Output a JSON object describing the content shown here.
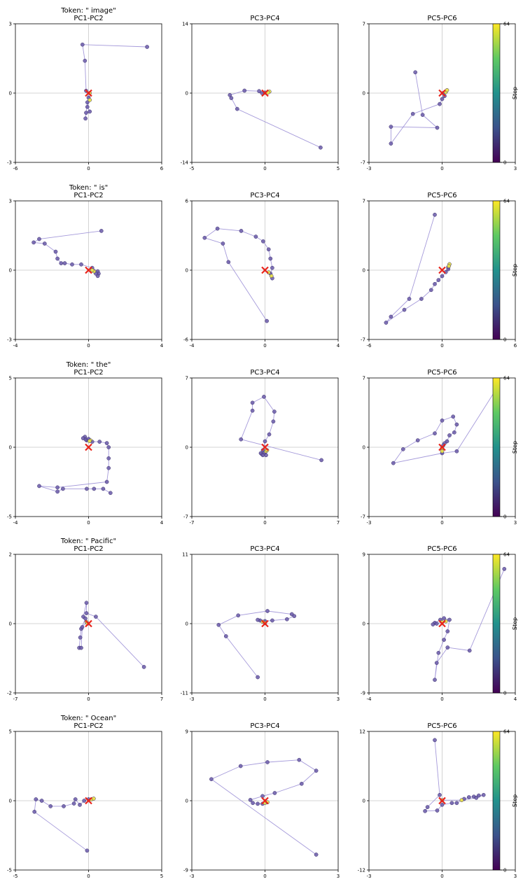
{
  "colorbar": {
    "label": "Step",
    "min": 0,
    "max": 64,
    "tick_labels": [
      "64",
      "0"
    ],
    "colors": [
      "#440154",
      "#3b528b",
      "#21918c",
      "#5ec962",
      "#fde725"
    ]
  },
  "style": {
    "line_color": "#9b8fd6",
    "point_color": "#6a5aa8",
    "point_edge": "#3b2f6e",
    "final_point_color": "#e8e24a",
    "marker_color": "#e8231a",
    "reference_line_color": "#c8c8c8"
  },
  "chart_data": [
    {
      "type": "line",
      "token": "Token: \" image\"",
      "title": "PC1-PC2",
      "xlim": [
        -6,
        6
      ],
      "ylim": [
        -3,
        3
      ],
      "x_ticks": [
        "-6",
        "0",
        "6"
      ],
      "y_ticks": [
        "3",
        "0",
        "-3"
      ],
      "points": [
        [
          4.8,
          2.0
        ],
        [
          -0.5,
          2.1
        ],
        [
          -0.3,
          1.4
        ],
        [
          -0.2,
          0.1
        ],
        [
          0,
          -0.2
        ],
        [
          -0.1,
          -0.6
        ],
        [
          0.1,
          -0.8
        ],
        [
          -0.2,
          -0.85
        ],
        [
          -0.25,
          -1.1
        ],
        [
          -0.1,
          -0.4
        ],
        [
          0.1,
          -0.3
        ],
        [
          0.1,
          0.0
        ]
      ]
    },
    {
      "type": "line",
      "token": "",
      "title": "PC3-PC4",
      "xlim": [
        -5,
        5
      ],
      "ylim": [
        -14,
        14
      ],
      "x_ticks": [
        "-5",
        "0",
        "5"
      ],
      "y_ticks": [
        "14",
        "0",
        "-14"
      ],
      "points": [
        [
          3.8,
          -11.0
        ],
        [
          -1.9,
          -3.2
        ],
        [
          -2.3,
          -1.0
        ],
        [
          -2.4,
          -0.4
        ],
        [
          -1.4,
          0.5
        ],
        [
          -0.4,
          0.4
        ],
        [
          -0.2,
          0.0
        ],
        [
          0.0,
          0.1
        ],
        [
          0.3,
          0.3
        ],
        [
          0.2,
          0.1
        ]
      ]
    },
    {
      "type": "line",
      "token": "",
      "title": "PC5-PC6",
      "xlim": [
        -3,
        3
      ],
      "ylim": [
        -7,
        7
      ],
      "x_ticks": [
        "-3",
        "0",
        "3"
      ],
      "y_ticks": [
        "7",
        "0",
        "-7"
      ],
      "points": [
        [
          -1.1,
          2.1
        ],
        [
          -0.8,
          -2.2
        ],
        [
          -0.2,
          -3.5
        ],
        [
          -2.1,
          -3.4
        ],
        [
          -2.1,
          -5.1
        ],
        [
          -1.2,
          -2.1
        ],
        [
          -0.1,
          -1.1
        ],
        [
          0.0,
          -0.6
        ],
        [
          0.1,
          -0.3
        ],
        [
          0.05,
          0.0
        ],
        [
          0.15,
          0.1
        ],
        [
          0.2,
          0.3
        ]
      ]
    },
    {
      "type": "line",
      "token": "Token: \" is\"",
      "title": "PC1-PC2",
      "xlim": [
        -4,
        4
      ],
      "ylim": [
        -3,
        3
      ],
      "x_ticks": [
        "-4",
        "0",
        "4"
      ],
      "y_ticks": [
        "3",
        "0",
        "-3"
      ],
      "points": [
        [
          0.7,
          1.7
        ],
        [
          -2.7,
          1.35
        ],
        [
          -3.0,
          1.2
        ],
        [
          -2.4,
          1.15
        ],
        [
          -1.8,
          0.8
        ],
        [
          -1.7,
          0.5
        ],
        [
          -1.5,
          0.3
        ],
        [
          -1.3,
          0.3
        ],
        [
          -0.9,
          0.25
        ],
        [
          -0.4,
          0.25
        ],
        [
          0.2,
          0.1
        ],
        [
          0.5,
          -0.05
        ],
        [
          0.55,
          -0.15
        ],
        [
          0.5,
          -0.25
        ],
        [
          0.4,
          -0.15
        ],
        [
          0.3,
          -0.05
        ],
        [
          0.2,
          0.0
        ]
      ]
    },
    {
      "type": "line",
      "token": "",
      "title": "PC3-PC4",
      "xlim": [
        -4,
        4
      ],
      "ylim": [
        -6,
        6
      ],
      "x_ticks": [
        "-4",
        "0",
        "4"
      ],
      "y_ticks": [
        "6",
        "0",
        "-6"
      ],
      "points": [
        [
          0.1,
          -4.4
        ],
        [
          -2.0,
          0.7
        ],
        [
          -2.3,
          2.3
        ],
        [
          -3.3,
          2.8
        ],
        [
          -2.6,
          3.6
        ],
        [
          -1.3,
          3.4
        ],
        [
          -0.5,
          2.9
        ],
        [
          -0.1,
          2.5
        ],
        [
          0.2,
          1.8
        ],
        [
          0.3,
          1.0
        ],
        [
          0.4,
          0.2
        ],
        [
          0.3,
          -0.3
        ],
        [
          0.4,
          -0.7
        ],
        [
          0.35,
          -0.5
        ],
        [
          0.2,
          -0.2
        ]
      ]
    },
    {
      "type": "line",
      "token": "",
      "title": "PC5-PC6",
      "xlim": [
        -6,
        6
      ],
      "ylim": [
        -7,
        7
      ],
      "x_ticks": [
        "-6",
        "0",
        "6"
      ],
      "y_ticks": [
        "7",
        "0",
        "-7"
      ],
      "points": [
        [
          -0.6,
          5.6
        ],
        [
          -2.7,
          -2.9
        ],
        [
          -4.2,
          -4.7
        ],
        [
          -4.6,
          -5.3
        ],
        [
          -3.1,
          -4.0
        ],
        [
          -1.7,
          -2.9
        ],
        [
          -0.9,
          -2.0
        ],
        [
          -0.6,
          -1.4
        ],
        [
          -0.3,
          -1.0
        ],
        [
          0.0,
          -0.6
        ],
        [
          0.3,
          -0.2
        ],
        [
          0.5,
          0.1
        ],
        [
          0.5,
          0.3
        ],
        [
          0.6,
          0.6
        ],
        [
          0.55,
          0.4
        ]
      ]
    },
    {
      "type": "line",
      "token": "Token: \" the\"",
      "title": "PC1-PC2",
      "xlim": [
        -4,
        4
      ],
      "ylim": [
        -5,
        5
      ],
      "x_ticks": [
        "-4",
        "0",
        "4"
      ],
      "y_ticks": [
        "5",
        "0",
        "-5"
      ],
      "points": [
        [
          1.2,
          -3.3
        ],
        [
          0.8,
          -3.0
        ],
        [
          0.3,
          -3.0
        ],
        [
          -0.1,
          -3.0
        ],
        [
          -1.4,
          -3.0
        ],
        [
          -1.7,
          -3.2
        ],
        [
          -2.7,
          -2.8
        ],
        [
          -1.7,
          -2.9
        ],
        [
          1.0,
          -2.5
        ],
        [
          1.1,
          -1.5
        ],
        [
          1.1,
          -0.8
        ],
        [
          1.1,
          0.0
        ],
        [
          1.0,
          0.3
        ],
        [
          0.6,
          0.4
        ],
        [
          0.2,
          0.4
        ],
        [
          -0.1,
          0.5
        ],
        [
          -0.2,
          0.75
        ],
        [
          -0.3,
          0.65
        ],
        [
          -0.15,
          0.55
        ],
        [
          0.0,
          0.6
        ],
        [
          0.1,
          0.5
        ],
        [
          0.05,
          0.45
        ]
      ]
    },
    {
      "type": "line",
      "token": "",
      "title": "PC3-PC4",
      "xlim": [
        -7,
        7
      ],
      "ylim": [
        -7,
        7
      ],
      "x_ticks": [
        "-7",
        "0",
        "7"
      ],
      "y_ticks": [
        "7",
        "0",
        "-7"
      ],
      "points": [
        [
          5.4,
          -1.3
        ],
        [
          -2.3,
          0.8
        ],
        [
          -1.2,
          3.7
        ],
        [
          -1.2,
          4.5
        ],
        [
          -0.1,
          5.1
        ],
        [
          0.9,
          3.6
        ],
        [
          0.8,
          2.6
        ],
        [
          0.4,
          1.3
        ],
        [
          0.0,
          0.6
        ],
        [
          -0.2,
          -0.3
        ],
        [
          -0.3,
          -0.7
        ],
        [
          -0.4,
          -0.6
        ],
        [
          -0.2,
          -0.8
        ],
        [
          0.1,
          -0.8
        ],
        [
          0.0,
          -0.5
        ],
        [
          0.1,
          -0.4
        ],
        [
          0.2,
          -0.3
        ]
      ]
    },
    {
      "type": "line",
      "token": "",
      "title": "PC5-PC6",
      "xlim": [
        -3,
        3
      ],
      "ylim": [
        -7,
        7
      ],
      "x_ticks": [
        "-3",
        "0",
        "3"
      ],
      "y_ticks": [
        "7",
        "0",
        "-7"
      ],
      "points": [
        [
          2.2,
          5.8
        ],
        [
          0.6,
          -0.4
        ],
        [
          0.0,
          -0.6
        ],
        [
          -2.0,
          -1.6
        ],
        [
          -1.6,
          -0.2
        ],
        [
          -1.0,
          0.7
        ],
        [
          -0.3,
          1.4
        ],
        [
          0.0,
          2.7
        ],
        [
          0.45,
          3.1
        ],
        [
          0.6,
          2.3
        ],
        [
          0.5,
          1.5
        ],
        [
          0.3,
          1.2
        ],
        [
          0.2,
          0.6
        ],
        [
          0.1,
          0.4
        ],
        [
          0.05,
          0.2
        ],
        [
          0.0,
          -0.1
        ],
        [
          0.0,
          -0.4
        ]
      ]
    },
    {
      "type": "line",
      "token": "Token: \" Pacific\"",
      "title": "PC1-PC2",
      "xlim": [
        -7,
        7
      ],
      "ylim": [
        -2,
        2
      ],
      "x_ticks": [
        "-7",
        "0",
        "7"
      ],
      "y_ticks": [
        "2",
        "0",
        "-2"
      ],
      "points": [
        [
          5.3,
          -1.25
        ],
        [
          0.7,
          0.2
        ],
        [
          -0.2,
          0.3
        ],
        [
          -0.2,
          0.6
        ],
        [
          -0.5,
          0.2
        ],
        [
          -0.3,
          0.15
        ],
        [
          -0.7,
          -0.15
        ],
        [
          -0.8,
          -0.4
        ],
        [
          -0.9,
          -0.7
        ],
        [
          -0.7,
          -0.7
        ],
        [
          -0.6,
          -0.1
        ],
        [
          -0.2,
          0.05
        ],
        [
          -0.1,
          0.0
        ]
      ]
    },
    {
      "type": "line",
      "token": "",
      "title": "PC3-PC4",
      "xlim": [
        -3,
        3
      ],
      "ylim": [
        -11,
        11
      ],
      "x_ticks": [
        "-3",
        "0",
        "3"
      ],
      "y_ticks": [
        "11",
        "0",
        "-11"
      ],
      "points": [
        [
          -0.3,
          -8.5
        ],
        [
          -1.6,
          -2.0
        ],
        [
          -1.9,
          -0.2
        ],
        [
          -1.1,
          1.3
        ],
        [
          0.1,
          2.0
        ],
        [
          1.1,
          1.5
        ],
        [
          1.2,
          1.2
        ],
        [
          0.9,
          0.7
        ],
        [
          0.3,
          0.5
        ],
        [
          0.0,
          0.4
        ],
        [
          -0.2,
          0.5
        ],
        [
          -0.3,
          0.6
        ],
        [
          -0.1,
          0.3
        ],
        [
          0.0,
          0.1
        ]
      ]
    },
    {
      "type": "line",
      "token": "",
      "title": "PC5-PC6",
      "xlim": [
        -4,
        4
      ],
      "ylim": [
        -9,
        9
      ],
      "x_ticks": [
        "-4",
        "0",
        "4"
      ],
      "y_ticks": [
        "9",
        "0",
        "-9"
      ],
      "points": [
        [
          3.4,
          7.1
        ],
        [
          1.5,
          -3.5
        ],
        [
          0.3,
          -3.1
        ],
        [
          -0.3,
          -5.1
        ],
        [
          -0.4,
          -7.3
        ],
        [
          -0.2,
          -3.8
        ],
        [
          0.1,
          -2.1
        ],
        [
          0.3,
          -1.0
        ],
        [
          0.4,
          0.5
        ],
        [
          0.1,
          0.7
        ],
        [
          -0.1,
          0.5
        ],
        [
          -0.4,
          0.1
        ],
        [
          -0.5,
          -0.1
        ],
        [
          -0.3,
          0.0
        ],
        [
          0.0,
          0.2
        ],
        [
          0.2,
          0.3
        ]
      ]
    },
    {
      "type": "line",
      "token": "Token: \" Ocean\"",
      "title": "PC1-PC2",
      "xlim": [
        -5,
        5
      ],
      "ylim": [
        -5,
        5
      ],
      "x_ticks": [
        "-5",
        "0",
        "5"
      ],
      "y_ticks": [
        "5",
        "0",
        "-5"
      ],
      "points": [
        [
          -0.1,
          -3.6
        ],
        [
          -3.7,
          -0.8
        ],
        [
          -3.6,
          0.1
        ],
        [
          -3.2,
          0.0
        ],
        [
          -2.6,
          -0.4
        ],
        [
          -1.7,
          -0.4
        ],
        [
          -1.0,
          -0.2
        ],
        [
          -0.9,
          0.1
        ],
        [
          -0.6,
          -0.3
        ],
        [
          -0.3,
          0.0
        ],
        [
          0.0,
          0.1
        ],
        [
          0.2,
          0.1
        ],
        [
          0.35,
          0.15
        ]
      ]
    },
    {
      "type": "line",
      "token": "",
      "title": "PC3-PC4",
      "xlim": [
        -3,
        3
      ],
      "ylim": [
        -9,
        9
      ],
      "x_ticks": [
        "-3",
        "0",
        "3"
      ],
      "y_ticks": [
        "9",
        "0",
        "-9"
      ],
      "points": [
        [
          2.1,
          -7.0
        ],
        [
          -2.2,
          2.8
        ],
        [
          -1.0,
          4.5
        ],
        [
          0.1,
          5.0
        ],
        [
          1.4,
          5.3
        ],
        [
          2.1,
          3.9
        ],
        [
          1.5,
          2.2
        ],
        [
          0.4,
          1.0
        ],
        [
          -0.1,
          0.6
        ],
        [
          -0.6,
          0.1
        ],
        [
          -0.5,
          -0.3
        ],
        [
          -0.3,
          -0.4
        ],
        [
          -0.1,
          -0.4
        ],
        [
          0.0,
          -0.3
        ],
        [
          0.1,
          -0.2
        ]
      ]
    },
    {
      "type": "line",
      "token": "",
      "title": "PC5-PC6",
      "xlim": [
        -3,
        3
      ],
      "ylim": [
        -12,
        12
      ],
      "x_ticks": [
        "-3",
        "0",
        "3"
      ],
      "y_ticks": [
        "12",
        "0",
        "-12"
      ],
      "points": [
        [
          -0.3,
          10.5
        ],
        [
          -0.1,
          1.0
        ],
        [
          -0.6,
          -1.1
        ],
        [
          -0.7,
          -1.8
        ],
        [
          -0.2,
          -1.7
        ],
        [
          0.0,
          -0.7
        ],
        [
          0.4,
          -0.4
        ],
        [
          0.6,
          -0.4
        ],
        [
          0.9,
          0.3
        ],
        [
          1.1,
          0.6
        ],
        [
          1.3,
          0.7
        ],
        [
          1.5,
          0.9
        ],
        [
          1.7,
          1.0
        ],
        [
          1.4,
          0.5
        ],
        [
          0.8,
          0.1
        ],
        [
          0.0,
          0.1
        ]
      ]
    }
  ]
}
